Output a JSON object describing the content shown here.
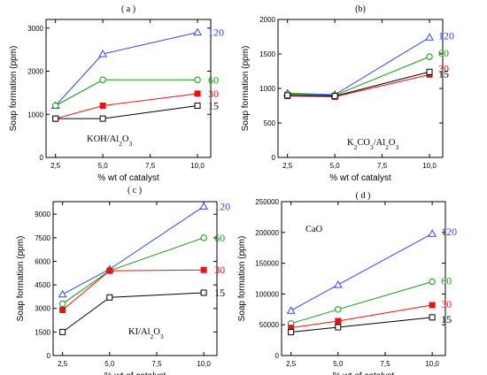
{
  "chart_data": [
    {
      "type": "line",
      "panel": "( a )",
      "annotation": "KOH/Al₂O₃",
      "xlabel": "% wt of catalyst",
      "ylabel": "Soap formation (ppm)",
      "x": [
        2.5,
        5.0,
        10.0
      ],
      "xticks": [
        2.5,
        5.0,
        7.5,
        10.0
      ],
      "xtick_labels": [
        "2,5",
        "5,0",
        "7,5",
        "10,0"
      ],
      "xlim": [
        2.0,
        10.7
      ],
      "ylim": [
        0,
        3200
      ],
      "yticks": [
        0,
        1000,
        2000,
        3000
      ],
      "ytick_labels": [
        "0",
        "1000",
        "2000",
        "3000"
      ],
      "series": [
        {
          "name": "120",
          "values": [
            1200,
            2400,
            2900
          ],
          "color": "#3344ee",
          "marker": "triangle"
        },
        {
          "name": "60",
          "values": [
            1200,
            1800,
            1800
          ],
          "color": "#119911",
          "marker": "circle"
        },
        {
          "name": "30",
          "values": [
            900,
            1200,
            1480
          ],
          "color": "#ee1111",
          "marker": "square-filled"
        },
        {
          "name": "15",
          "values": [
            900,
            900,
            1200
          ],
          "color": "#000000",
          "marker": "square"
        }
      ]
    },
    {
      "type": "line",
      "panel": "(b)",
      "annotation": "K₂CO₃/Al₂O₃",
      "xlabel": "% wt of catalyst",
      "ylabel": "Soap formation (ppm)",
      "x": [
        2.5,
        5.0,
        10.0
      ],
      "xticks": [
        2.5,
        5.0,
        7.5,
        10.0
      ],
      "xtick_labels": [
        "2,5",
        "5,0",
        "7,5",
        "10,0"
      ],
      "xlim": [
        2.0,
        10.7
      ],
      "ylim": [
        0,
        2000
      ],
      "yticks": [
        0,
        500,
        1000,
        1500,
        2000
      ],
      "ytick_labels": [
        "0",
        "500",
        "1000",
        "1500",
        "2000"
      ],
      "series": [
        {
          "name": "120",
          "values": [
            930,
            910,
            1740
          ],
          "color": "#3344ee",
          "marker": "triangle"
        },
        {
          "name": "60",
          "values": [
            920,
            900,
            1460
          ],
          "color": "#119911",
          "marker": "circle"
        },
        {
          "name": "30",
          "values": [
            890,
            880,
            1200
          ],
          "color": "#ee1111",
          "marker": "square-filled"
        },
        {
          "name": "15",
          "values": [
            900,
            890,
            1240
          ],
          "color": "#000000",
          "marker": "square"
        }
      ]
    },
    {
      "type": "line",
      "panel": "( c )",
      "annotation": "KI/Al₂O₃",
      "xlabel": "% wt of catalyst",
      "ylabel": "Soap formation (ppm)",
      "x": [
        2.5,
        5.0,
        10.0
      ],
      "xticks": [
        2.5,
        5.0,
        7.5,
        10.0
      ],
      "xtick_labels": [
        "2,5",
        "5,0",
        "7,5",
        "10,0"
      ],
      "xlim": [
        2.0,
        10.7
      ],
      "ylim": [
        0,
        9800
      ],
      "yticks": [
        0,
        1500,
        3000,
        4500,
        6000,
        7500,
        9000
      ],
      "ytick_labels": [
        "0",
        "1500",
        "3000",
        "4500",
        "6000",
        "7500",
        "9000"
      ],
      "series": [
        {
          "name": "120",
          "values": [
            3900,
            5500,
            9500
          ],
          "color": "#3344ee",
          "marker": "triangle"
        },
        {
          "name": "60",
          "values": [
            3300,
            5400,
            7500
          ],
          "color": "#119911",
          "marker": "circle"
        },
        {
          "name": "30",
          "values": [
            2900,
            5400,
            5450
          ],
          "color": "#ee1111",
          "marker": "square-filled"
        },
        {
          "name": "15",
          "values": [
            1500,
            3700,
            4000
          ],
          "color": "#000000",
          "marker": "square"
        }
      ]
    },
    {
      "type": "line",
      "panel": "( d )",
      "annotation": "CaO",
      "xlabel": "% wt of catalyst",
      "ylabel": "Soap formation (ppm)",
      "x": [
        2.5,
        5.0,
        10.0
      ],
      "xticks": [
        2.5,
        5.0,
        7.5,
        10.0
      ],
      "xtick_labels": [
        "2,5",
        "5,0",
        "7,5",
        "10,0"
      ],
      "xlim": [
        2.0,
        10.7
      ],
      "ylim": [
        0,
        250000
      ],
      "yticks": [
        0,
        50000,
        100000,
        150000,
        200000,
        250000
      ],
      "ytick_labels": [
        "0",
        "50000",
        "100000",
        "150000",
        "200000",
        "250000"
      ],
      "series": [
        {
          "name": "120",
          "values": [
            73000,
            115000,
            198000
          ],
          "color": "#3344ee",
          "marker": "triangle"
        },
        {
          "name": "60",
          "values": [
            52000,
            75000,
            120000
          ],
          "color": "#119911",
          "marker": "circle"
        },
        {
          "name": "30",
          "values": [
            45000,
            56000,
            82000
          ],
          "color": "#ee1111",
          "marker": "square-filled"
        },
        {
          "name": "15",
          "values": [
            38000,
            46000,
            62000
          ],
          "color": "#000000",
          "marker": "square"
        }
      ]
    }
  ]
}
